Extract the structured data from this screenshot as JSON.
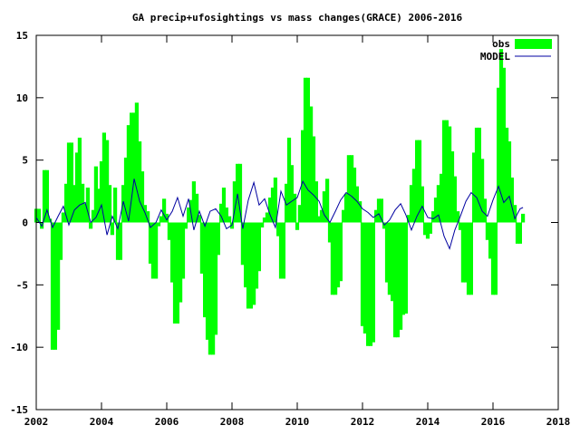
{
  "chart_data": {
    "type": "bar",
    "title": "GA precip+ufosightings vs mass changes(GRACE) 2006-2016",
    "xlabel": "",
    "ylabel": "",
    "xlim": [
      2002,
      2018
    ],
    "ylim": [
      -15,
      15
    ],
    "x_ticks": [
      "2002",
      "2004",
      "2006",
      "2008",
      "2010",
      "2012",
      "2014",
      "2016",
      "2018"
    ],
    "y_ticks": [
      "15",
      "10",
      "5",
      "0",
      "-5",
      "-10",
      "-15"
    ],
    "legend_position": "top-right",
    "grid": false,
    "colors": {
      "obs": "#00ff00",
      "model": "#0000a0",
      "frame": "#000000"
    },
    "series": [
      {
        "name": "obs",
        "style": "filled-bars",
        "x": [
          2002.0,
          2002.08,
          2002.17,
          2002.25,
          2002.33,
          2002.42,
          2002.5,
          2002.58,
          2002.67,
          2002.75,
          2002.83,
          2002.92,
          2003.0,
          2003.08,
          2003.17,
          2003.25,
          2003.33,
          2003.42,
          2003.5,
          2003.58,
          2003.67,
          2003.75,
          2003.83,
          2003.92,
          2004.0,
          2004.08,
          2004.17,
          2004.25,
          2004.33,
          2004.42,
          2004.5,
          2004.58,
          2004.67,
          2004.75,
          2004.83,
          2004.92,
          2005.0,
          2005.08,
          2005.17,
          2005.25,
          2005.33,
          2005.42,
          2005.5,
          2005.58,
          2005.67,
          2005.75,
          2005.83,
          2005.92,
          2006.0,
          2006.08,
          2006.17,
          2006.25,
          2006.33,
          2006.42,
          2006.5,
          2006.58,
          2006.67,
          2006.75,
          2006.83,
          2006.92,
          2007.0,
          2007.08,
          2007.17,
          2007.25,
          2007.33,
          2007.42,
          2007.5,
          2007.58,
          2007.67,
          2007.75,
          2007.83,
          2007.92,
          2008.0,
          2008.08,
          2008.17,
          2008.25,
          2008.33,
          2008.42,
          2008.5,
          2008.58,
          2008.67,
          2008.75,
          2008.83,
          2008.92,
          2009.0,
          2009.08,
          2009.17,
          2009.25,
          2009.33,
          2009.42,
          2009.5,
          2009.58,
          2009.67,
          2009.75,
          2009.83,
          2009.92,
          2010.0,
          2010.08,
          2010.17,
          2010.25,
          2010.33,
          2010.42,
          2010.5,
          2010.58,
          2010.67,
          2010.75,
          2010.83,
          2010.92,
          2011.0,
          2011.08,
          2011.17,
          2011.25,
          2011.33,
          2011.42,
          2011.5,
          2011.58,
          2011.67,
          2011.75,
          2011.83,
          2011.92,
          2012.0,
          2012.08,
          2012.17,
          2012.25,
          2012.33,
          2012.42,
          2012.5,
          2012.58,
          2012.67,
          2012.75,
          2012.83,
          2012.92,
          2013.0,
          2013.08,
          2013.17,
          2013.25,
          2013.33,
          2013.42,
          2013.5,
          2013.58,
          2013.67,
          2013.75,
          2013.83,
          2013.92,
          2014.0,
          2014.08,
          2014.17,
          2014.25,
          2014.33,
          2014.42,
          2014.5,
          2014.58,
          2014.67,
          2014.75,
          2014.83,
          2014.92,
          2015.0,
          2015.08,
          2015.17,
          2015.25,
          2015.33,
          2015.42,
          2015.5,
          2015.58,
          2015.67,
          2015.75,
          2015.83,
          2015.92,
          2016.0,
          2016.08,
          2016.17,
          2016.25,
          2016.33,
          2016.42,
          2016.5,
          2016.58,
          2016.67,
          2016.75,
          2016.83,
          2016.92
        ],
        "values": [
          1.1,
          1.1,
          -0.5,
          4.2,
          4.2,
          0.3,
          -10.2,
          -10.2,
          -8.6,
          -3.0,
          0.8,
          3.1,
          6.4,
          6.4,
          3.0,
          5.6,
          6.8,
          3.1,
          1.5,
          2.8,
          -0.5,
          1.0,
          4.5,
          2.7,
          4.9,
          7.2,
          6.6,
          3.0,
          -1.0,
          2.8,
          -3.0,
          -3.0,
          3.0,
          5.2,
          7.8,
          8.8,
          8.8,
          9.6,
          6.5,
          4.1,
          1.4,
          0.9,
          -3.3,
          -4.5,
          -4.5,
          -0.3,
          0.5,
          1.9,
          0.7,
          -1.4,
          -4.8,
          -8.1,
          -8.1,
          -6.4,
          -4.5,
          -0.5,
          1.2,
          1.8,
          3.3,
          2.3,
          0.6,
          -4.1,
          -7.6,
          -9.4,
          -10.6,
          -10.6,
          -9.0,
          -2.6,
          1.5,
          2.8,
          1.2,
          0.5,
          -0.5,
          3.3,
          4.7,
          4.7,
          -3.4,
          -5.2,
          -6.9,
          -6.9,
          -6.6,
          -5.3,
          -3.9,
          -0.4,
          0.4,
          0.8,
          2.0,
          2.8,
          3.6,
          -1.1,
          -4.5,
          -4.5,
          3.1,
          6.8,
          4.6,
          2.3,
          -0.6,
          1.4,
          7.4,
          11.6,
          11.6,
          9.3,
          6.9,
          3.3,
          0.5,
          1.0,
          2.5,
          3.5,
          -1.6,
          -5.8,
          -5.8,
          -5.2,
          -4.7,
          1.0,
          2.3,
          5.4,
          5.4,
          4.4,
          2.9,
          1.7,
          -8.3,
          -8.9,
          -9.9,
          -9.9,
          -9.6,
          1.0,
          1.9,
          1.9,
          -0.5,
          -4.8,
          -5.8,
          -6.3,
          -9.2,
          -9.2,
          -8.6,
          -7.4,
          -7.3,
          0.6,
          3.0,
          4.3,
          6.6,
          6.6,
          2.9,
          -1.0,
          -1.3,
          -0.9,
          0.9,
          2.0,
          3.0,
          3.9,
          8.2,
          8.2,
          7.7,
          5.7,
          3.7,
          0.9,
          -0.6,
          -4.8,
          -4.8,
          -5.8,
          -5.8,
          5.6,
          7.6,
          7.6,
          5.1,
          1.9,
          -1.4,
          -2.9,
          -5.8,
          -5.8,
          10.8,
          13.9,
          12.4,
          7.6,
          6.5,
          3.6,
          1.4,
          -1.7,
          -1.7,
          0.7
        ]
      },
      {
        "name": "MODEL",
        "style": "line",
        "x": [
          2002.0,
          2002.17,
          2002.33,
          2002.5,
          2002.67,
          2002.83,
          2003.0,
          2003.17,
          2003.33,
          2003.5,
          2003.67,
          2003.83,
          2004.0,
          2004.17,
          2004.33,
          2004.5,
          2004.67,
          2004.83,
          2005.0,
          2005.17,
          2005.33,
          2005.5,
          2005.67,
          2005.83,
          2006.0,
          2006.17,
          2006.33,
          2006.5,
          2006.67,
          2006.83,
          2007.0,
          2007.17,
          2007.33,
          2007.5,
          2007.67,
          2007.83,
          2008.0,
          2008.17,
          2008.33,
          2008.5,
          2008.67,
          2008.83,
          2009.0,
          2009.17,
          2009.33,
          2009.5,
          2009.67,
          2009.83,
          2010.0,
          2010.17,
          2010.33,
          2010.5,
          2010.67,
          2010.83,
          2011.0,
          2011.17,
          2011.33,
          2011.5,
          2011.67,
          2011.83,
          2012.0,
          2012.17,
          2012.33,
          2012.5,
          2012.67,
          2012.83,
          2013.0,
          2013.17,
          2013.33,
          2013.5,
          2013.67,
          2013.83,
          2014.0,
          2014.17,
          2014.33,
          2014.5,
          2014.67,
          2014.83,
          2015.0,
          2015.17,
          2015.33,
          2015.5,
          2015.67,
          2015.83,
          2016.0,
          2016.17,
          2016.33,
          2016.5,
          2016.67,
          2016.83,
          2016.92
        ],
        "values": [
          0.4,
          -0.3,
          1.0,
          -0.4,
          0.5,
          1.3,
          -0.2,
          1.0,
          1.4,
          1.6,
          0.0,
          0.4,
          1.4,
          -1.0,
          0.5,
          -0.5,
          1.7,
          0.1,
          3.5,
          1.7,
          0.8,
          -0.4,
          0.0,
          1.0,
          0.2,
          0.9,
          2.0,
          0.5,
          1.9,
          -0.6,
          0.9,
          -0.3,
          0.9,
          1.1,
          0.5,
          -0.5,
          -0.2,
          2.3,
          -0.5,
          1.8,
          3.2,
          1.4,
          1.9,
          0.6,
          -0.4,
          2.5,
          1.4,
          1.7,
          2.0,
          3.3,
          2.6,
          2.2,
          1.7,
          0.6,
          0.0,
          0.9,
          1.8,
          2.4,
          2.1,
          1.7,
          1.1,
          0.8,
          0.4,
          0.7,
          -0.2,
          0.2,
          1.0,
          1.5,
          0.6,
          -0.6,
          0.5,
          1.3,
          0.4,
          0.3,
          0.6,
          -1.1,
          -2.1,
          -0.6,
          0.5,
          1.7,
          2.4,
          2.0,
          0.9,
          0.5,
          1.8,
          2.9,
          1.6,
          2.1,
          0.3,
          1.1,
          1.2
        ]
      }
    ]
  }
}
